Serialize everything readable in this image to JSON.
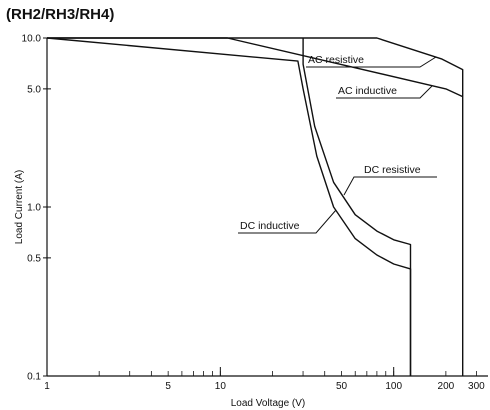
{
  "chart_data": {
    "type": "line",
    "title": "(RH2/RH3/RH4)",
    "xlabel": "Load Voltage (V)",
    "ylabel": "Load Current (A)",
    "xscale": "log",
    "yscale": "log",
    "xlim": [
      1,
      350
    ],
    "ylim": [
      0.1,
      10
    ],
    "grid": false,
    "x_tick_labels": [
      "1",
      "5",
      "10",
      "50",
      "100",
      "200",
      "300"
    ],
    "y_tick_labels": [
      "0.1",
      "0.5",
      "1.0",
      "5.0",
      "10.0"
    ],
    "series": [
      {
        "name": "AC resistive",
        "x": [
          1,
          80,
          190,
          250,
          250
        ],
        "y": [
          10,
          10,
          7.5,
          6.5,
          0.1
        ]
      },
      {
        "name": "AC inductive",
        "x": [
          1,
          11,
          200,
          250
        ],
        "y": [
          10,
          10,
          5,
          4.5
        ]
      },
      {
        "name": "DC resistive",
        "x": [
          30,
          30,
          35,
          45,
          60,
          80,
          100,
          125,
          125
        ],
        "y": [
          10,
          7,
          3,
          1.4,
          0.9,
          0.72,
          0.64,
          0.6,
          0.1
        ]
      },
      {
        "name": "DC inductive",
        "x": [
          1,
          28,
          30,
          36,
          45,
          60,
          80,
          100,
          125,
          125
        ],
        "y": [
          10,
          7.3,
          5,
          2,
          1.0,
          0.65,
          0.52,
          0.46,
          0.43,
          0.1
        ]
      }
    ]
  }
}
